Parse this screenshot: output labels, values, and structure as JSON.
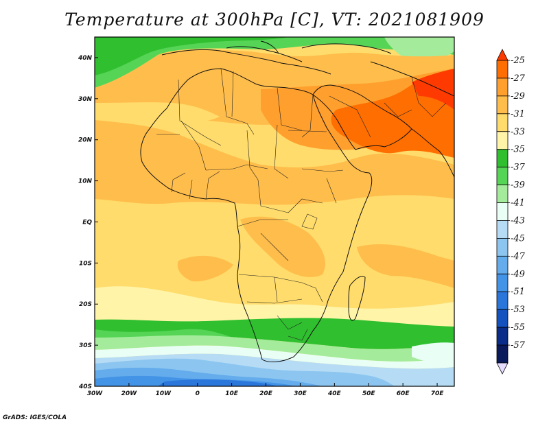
{
  "title": "Temperature at 300hPa [C], VT: 2021081909",
  "credit": "GrADS: IGES/COLA",
  "map": {
    "lon_range": [
      -30,
      75
    ],
    "lat_range": [
      -40,
      45
    ],
    "lon_ticks": [
      {
        "value": -30,
        "label": "30W"
      },
      {
        "value": -20,
        "label": "20W"
      },
      {
        "value": -10,
        "label": "10W"
      },
      {
        "value": 0,
        "label": "0"
      },
      {
        "value": 10,
        "label": "10E"
      },
      {
        "value": 20,
        "label": "20E"
      },
      {
        "value": 30,
        "label": "30E"
      },
      {
        "value": 40,
        "label": "40E"
      },
      {
        "value": 50,
        "label": "50E"
      },
      {
        "value": 60,
        "label": "60E"
      },
      {
        "value": 70,
        "label": "70E"
      }
    ],
    "lat_ticks": [
      {
        "value": 40,
        "label": "40N"
      },
      {
        "value": 30,
        "label": "30N"
      },
      {
        "value": 20,
        "label": "20N"
      },
      {
        "value": 10,
        "label": "10N"
      },
      {
        "value": 0,
        "label": "EQ"
      },
      {
        "value": -10,
        "label": "10S"
      },
      {
        "value": -20,
        "label": "20S"
      },
      {
        "value": -30,
        "label": "30S"
      },
      {
        "value": -40,
        "label": "40S"
      }
    ]
  },
  "colorbar": {
    "levels": [
      "-25",
      "-27",
      "-29",
      "-31",
      "-33",
      "-35",
      "-37",
      "-39",
      "-41",
      "-43",
      "-45",
      "-47",
      "-49",
      "-51",
      "-53",
      "-55",
      "-57"
    ],
    "colors": [
      "#ff3a00",
      "#ff6e00",
      "#ff9f2d",
      "#ffbd4b",
      "#ffdc6b",
      "#fff4a8",
      "#2fbf2f",
      "#55d455",
      "#a4ec9b",
      "#e9fff6",
      "#b6dcf5",
      "#8cc6f0",
      "#64acec",
      "#4393e7",
      "#2a76db",
      "#1452c0",
      "#0a2d8a",
      "#0b1a5a",
      "#e6dcff"
    ]
  }
}
